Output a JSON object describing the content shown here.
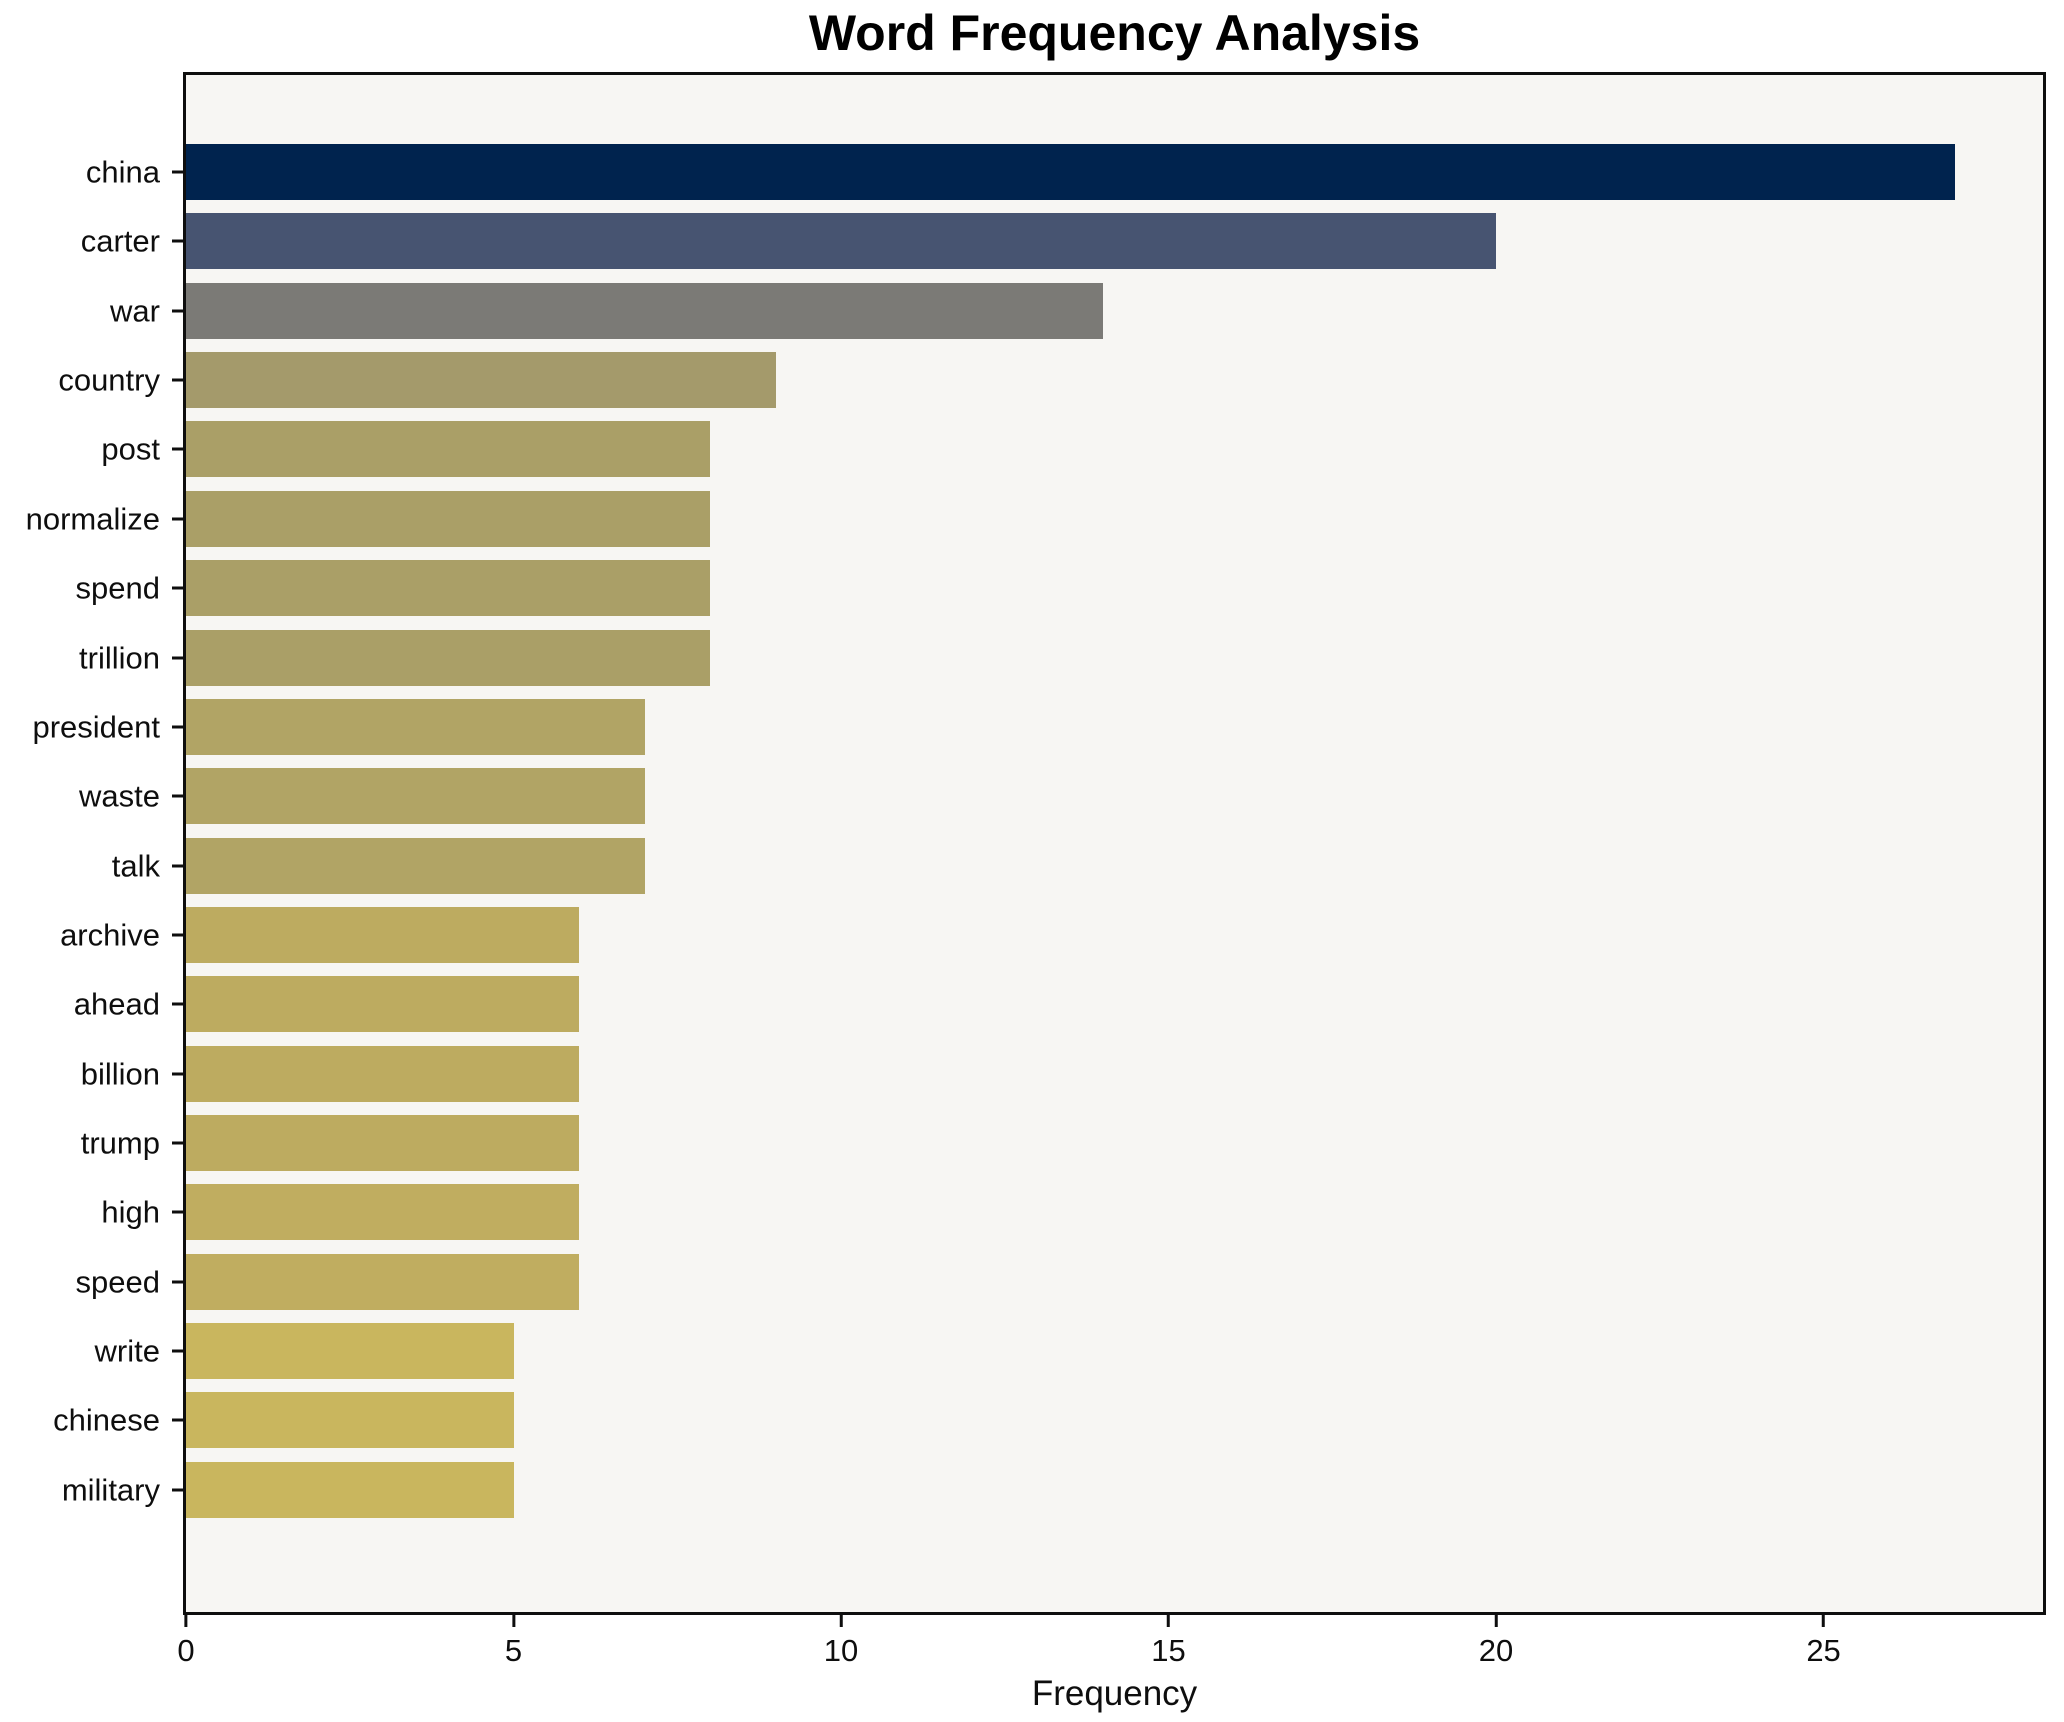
{
  "title": "Word Frequency Analysis",
  "axis": {
    "xlabel": "Frequency",
    "x_tick_labels": [
      "0",
      "5",
      "10",
      "15",
      "20",
      "25"
    ]
  },
  "colors": {
    "figure_bg": "#ffffff",
    "plot_bg": "#f7f6f3",
    "spine": "#0e0e0e",
    "text": "#0e0e0e",
    "title_text": "#000000"
  },
  "chart_data": {
    "type": "bar",
    "orientation": "horizontal",
    "title": "Word Frequency Analysis",
    "xlabel": "Frequency",
    "ylabel": "",
    "grid": false,
    "legend": null,
    "xlim": [
      0,
      28.35
    ],
    "x_ticks": [
      0,
      5,
      10,
      15,
      20,
      25
    ],
    "categories": [
      "china",
      "carter",
      "war",
      "country",
      "post",
      "normalize",
      "spend",
      "trillion",
      "president",
      "waste",
      "talk",
      "archive",
      "ahead",
      "billion",
      "trump",
      "high",
      "speed",
      "write",
      "chinese",
      "military"
    ],
    "values": [
      27,
      20,
      14,
      9,
      8,
      8,
      8,
      8,
      7,
      7,
      7,
      6,
      6,
      6,
      6,
      6,
      6,
      5,
      5,
      5
    ],
    "bar_colors": [
      "#00234e",
      "#475471",
      "#7b7a76",
      "#a49a6b",
      "#aa9f67",
      "#aa9f67",
      "#aa9f67",
      "#aa9f67",
      "#b1a465",
      "#b1a465",
      "#b1a465",
      "#bdab60",
      "#bdab60",
      "#bdab60",
      "#bdab60",
      "#c0ad60",
      "#c0ad60",
      "#c9b65e",
      "#c9b65e",
      "#c9b65e"
    ]
  }
}
